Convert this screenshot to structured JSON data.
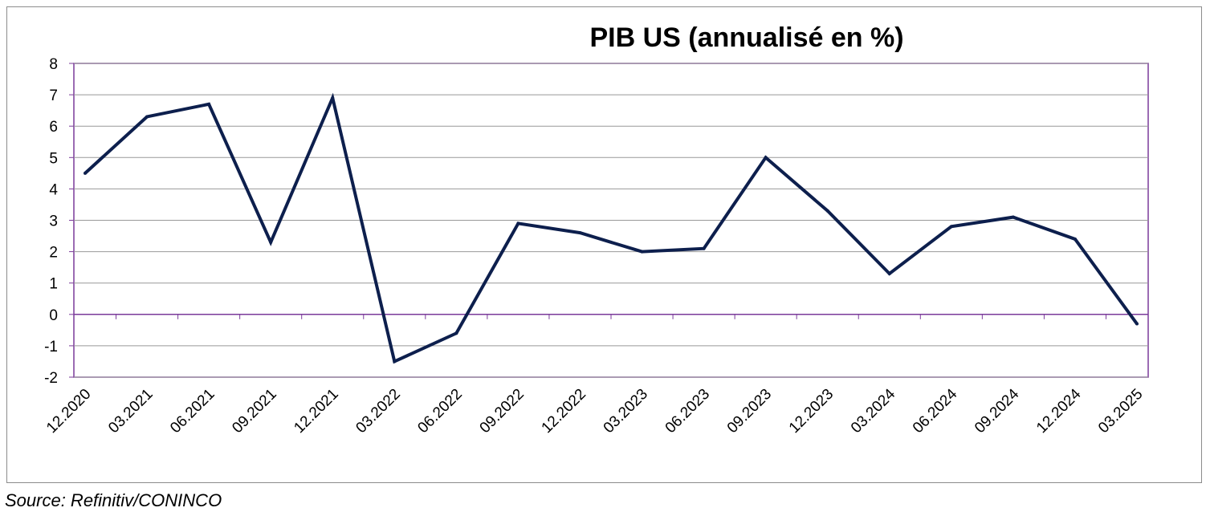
{
  "chart_data": {
    "type": "line",
    "title": "PIB US (annualisé en %)",
    "xlabel": "",
    "ylabel": "",
    "categories": [
      "12.2020",
      "03.2021",
      "06.2021",
      "09.2021",
      "12.2021",
      "03.2022",
      "06.2022",
      "09.2022",
      "12.2022",
      "03.2023",
      "06.2023",
      "09.2023",
      "12.2023",
      "03.2024",
      "06.2024",
      "09.2024",
      "12.2024",
      "03.2025"
    ],
    "series": [
      {
        "values": [
          4.5,
          6.3,
          6.7,
          2.3,
          6.9,
          -1.5,
          -0.6,
          2.9,
          2.6,
          2.0,
          2.1,
          5.0,
          3.3,
          1.3,
          2.8,
          3.1,
          2.4,
          -0.3
        ]
      }
    ],
    "ylim": [
      -2,
      8
    ],
    "yticks": [
      8,
      7,
      6,
      5,
      4,
      3,
      2,
      1,
      0,
      -1,
      -2
    ],
    "grid": true,
    "legend": "none",
    "colors": {
      "line": "#0d1f4d",
      "grid": "#999999",
      "axis": "#7a3a9a"
    }
  },
  "source": "Source: Refinitiv/CONINCO"
}
